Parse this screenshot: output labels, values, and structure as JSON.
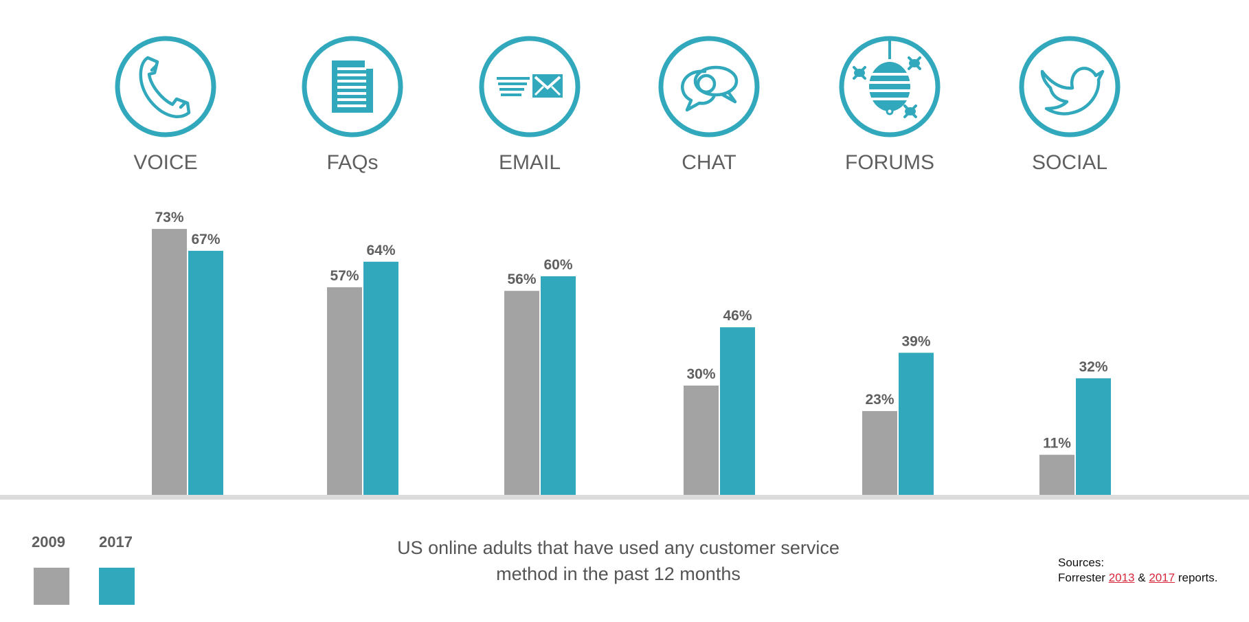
{
  "chart_data": {
    "type": "bar",
    "categories": [
      "VOICE",
      "FAQs",
      "EMAIL",
      "CHAT",
      "FORUMS",
      "SOCIAL"
    ],
    "category_icons": [
      "phone-icon",
      "document-icon",
      "email-icon",
      "chat-bubbles-icon",
      "forum-hive-icon",
      "twitter-bird-icon"
    ],
    "series": [
      {
        "name": "2009",
        "values": [
          73,
          57,
          56,
          30,
          23,
          11
        ],
        "color": "#a3a3a3"
      },
      {
        "name": "2017",
        "values": [
          67,
          64,
          60,
          46,
          39,
          32
        ],
        "color": "#31a8bb"
      }
    ],
    "value_suffix": "%",
    "ylim": [
      0,
      80
    ],
    "grid": false,
    "legend_position": "bottom-left",
    "icon_color": "#31a8bb"
  },
  "caption": {
    "line1": "US online adults that have used any customer service",
    "line2": "method in the past 12 months"
  },
  "sources": {
    "heading": "Sources:",
    "prefix": "Forrester ",
    "link1": "2013",
    "between": " & ",
    "link2": "2017",
    "suffix": " reports."
  }
}
